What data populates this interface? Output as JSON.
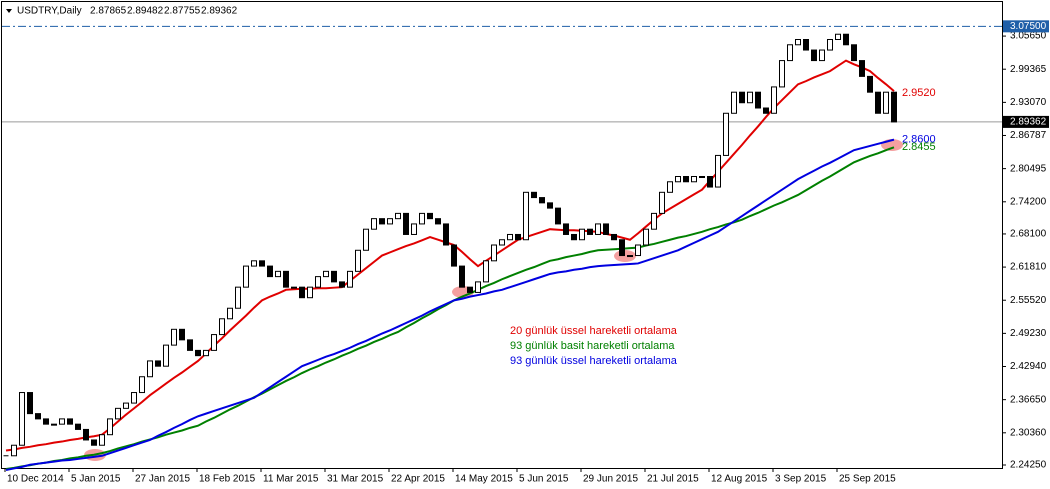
{
  "chart_data": {
    "type": "candlestick",
    "title": "USDTRY,Daily",
    "header_values": [
      2.87865,
      2.89482,
      2.87755,
      2.89362
    ],
    "categories": [
      "10 Dec 2014",
      null,
      null,
      null,
      null,
      null,
      null,
      null,
      "5 Jan 2015",
      null,
      null,
      null,
      null,
      null,
      null,
      null,
      "27 Jan 2015",
      null,
      null,
      null,
      null,
      null,
      null,
      null,
      "18 Feb 2015",
      null,
      null,
      null,
      null,
      null,
      null,
      null,
      "11 Mar 2015",
      null,
      null,
      null,
      null,
      null,
      null,
      null,
      "31 Mar 2015",
      null,
      null,
      null,
      null,
      null,
      null,
      null,
      "22 Apr 2015",
      null,
      null,
      null,
      null,
      null,
      null,
      null,
      "14 May 2015",
      null,
      null,
      null,
      null,
      null,
      null,
      null,
      "5 Jun 2015",
      null,
      null,
      null,
      null,
      null,
      null,
      null,
      "29 Jun 2015",
      null,
      null,
      null,
      null,
      null,
      null,
      null,
      "21 Jul 2015",
      null,
      null,
      null,
      null,
      null,
      null,
      null,
      "12 Aug 2015",
      null,
      null,
      null,
      null,
      null,
      null,
      null,
      "3 Sep 2015",
      null,
      null,
      null,
      null,
      null,
      null,
      null,
      "25 Sep 2015",
      null,
      null,
      null,
      null,
      null,
      null,
      null
    ],
    "values": [
      2.26,
      2.28,
      2.38,
      2.34,
      2.33,
      2.32,
      2.32,
      2.33,
      2.32,
      2.31,
      2.29,
      2.28,
      2.3,
      2.33,
      2.35,
      2.36,
      2.38,
      2.41,
      2.44,
      2.43,
      2.47,
      2.5,
      2.48,
      2.46,
      2.45,
      2.46,
      2.49,
      2.52,
      2.54,
      2.58,
      2.62,
      2.63,
      2.62,
      2.6,
      2.61,
      2.58,
      2.58,
      2.56,
      2.58,
      2.6,
      2.61,
      2.59,
      2.58,
      2.61,
      2.65,
      2.69,
      2.71,
      2.7,
      2.71,
      2.72,
      2.68,
      2.7,
      2.72,
      2.71,
      2.7,
      2.66,
      2.62,
      2.58,
      2.57,
      2.59,
      2.63,
      2.66,
      2.67,
      2.68,
      2.67,
      2.76,
      2.75,
      2.74,
      2.73,
      2.7,
      2.68,
      2.67,
      2.69,
      2.68,
      2.7,
      2.68,
      2.67,
      2.64,
      2.64,
      2.66,
      2.69,
      2.72,
      2.76,
      2.78,
      2.79,
      2.78,
      2.79,
      2.79,
      2.77,
      2.83,
      2.91,
      2.95,
      2.93,
      2.95,
      2.92,
      2.91,
      2.96,
      3.01,
      3.04,
      3.05,
      3.03,
      3.01,
      3.03,
      3.05,
      3.06,
      3.04,
      3.01,
      2.98,
      2.95,
      2.91,
      2.95,
      2.89362
    ],
    "up_color": "#ffffff",
    "down_color": "#000000",
    "series": [
      {
        "name": "20 günlük üssel hareketli ortalama",
        "color": "#e00000",
        "end_label": {
          "value": 2.952,
          "label": "2.9520"
        },
        "values": [
          2.27,
          2.272,
          2.275,
          2.277,
          2.28,
          2.282,
          2.285,
          2.287,
          2.29,
          2.292,
          2.295,
          2.297,
          2.3,
          2.312,
          2.325,
          2.338,
          2.35,
          2.362,
          2.375,
          2.386,
          2.397,
          2.408,
          2.418,
          2.429,
          2.44,
          2.454,
          2.469,
          2.483,
          2.498,
          2.512,
          2.526,
          2.541,
          2.555,
          2.562,
          2.568,
          2.575,
          2.576,
          2.577,
          2.577,
          2.578,
          2.578,
          2.579,
          2.58,
          2.592,
          2.604,
          2.616,
          2.628,
          2.64,
          2.646,
          2.652,
          2.658,
          2.663,
          2.669,
          2.675,
          2.67,
          2.665,
          2.66,
          2.647,
          2.633,
          2.62,
          2.63,
          2.64,
          2.65,
          2.66,
          2.67,
          2.675,
          2.68,
          2.685,
          2.69,
          2.689,
          2.688,
          2.688,
          2.687,
          2.686,
          2.685,
          2.681,
          2.678,
          2.674,
          2.67,
          2.682,
          2.695,
          2.708,
          2.72,
          2.729,
          2.738,
          2.747,
          2.756,
          2.765,
          2.782,
          2.799,
          2.816,
          2.833,
          2.85,
          2.868,
          2.885,
          2.903,
          2.92,
          2.935,
          2.95,
          2.965,
          2.971,
          2.978,
          2.984,
          2.99,
          3.0,
          3.01,
          3.003,
          2.997,
          2.99,
          2.977,
          2.965,
          2.952
        ]
      },
      {
        "name": "93 günlük basit hareketli ortalama",
        "color": "#008000",
        "end_label": {
          "value": 2.8455,
          "label": "2.8455"
        },
        "values": [
          2.235,
          2.237,
          2.24,
          2.242,
          2.245,
          2.247,
          2.25,
          2.252,
          2.255,
          2.257,
          2.26,
          2.262,
          2.265,
          2.269,
          2.274,
          2.278,
          2.282,
          2.287,
          2.291,
          2.295,
          2.3,
          2.304,
          2.308,
          2.313,
          2.317,
          2.325,
          2.332,
          2.34,
          2.348,
          2.355,
          2.363,
          2.371,
          2.378,
          2.386,
          2.394,
          2.402,
          2.409,
          2.417,
          2.424,
          2.43,
          2.437,
          2.443,
          2.45,
          2.456,
          2.463,
          2.469,
          2.476,
          2.482,
          2.489,
          2.495,
          2.504,
          2.512,
          2.521,
          2.529,
          2.538,
          2.546,
          2.555,
          2.562,
          2.568,
          2.575,
          2.582,
          2.588,
          2.595,
          2.601,
          2.607,
          2.613,
          2.618,
          2.624,
          2.63,
          2.633,
          2.637,
          2.64,
          2.643,
          2.647,
          2.65,
          2.651,
          2.652,
          2.653,
          2.654,
          2.655,
          2.659,
          2.662,
          2.666,
          2.67,
          2.674,
          2.677,
          2.681,
          2.685,
          2.69,
          2.694,
          2.699,
          2.703,
          2.708,
          2.715,
          2.721,
          2.728,
          2.735,
          2.741,
          2.748,
          2.755,
          2.764,
          2.773,
          2.782,
          2.79,
          2.799,
          2.808,
          2.817,
          2.823,
          2.829,
          2.834,
          2.84,
          2.8455
        ]
      },
      {
        "name": "93 günlük üssel hareketli ortalama",
        "color": "#0000e0",
        "end_label": {
          "value": 2.86,
          "label": "2.8600"
        },
        "values": [
          2.233,
          2.236,
          2.239,
          2.243,
          2.245,
          2.247,
          2.249,
          2.251,
          2.252,
          2.254,
          2.256,
          2.258,
          2.26,
          2.265,
          2.27,
          2.275,
          2.28,
          2.285,
          2.29,
          2.298,
          2.305,
          2.313,
          2.32,
          2.328,
          2.335,
          2.34,
          2.345,
          2.35,
          2.355,
          2.36,
          2.365,
          2.37,
          2.38,
          2.39,
          2.4,
          2.41,
          2.42,
          2.43,
          2.436,
          2.442,
          2.448,
          2.453,
          2.459,
          2.465,
          2.472,
          2.478,
          2.485,
          2.492,
          2.498,
          2.505,
          2.512,
          2.519,
          2.526,
          2.534,
          2.541,
          2.548,
          2.555,
          2.558,
          2.562,
          2.565,
          2.568,
          2.572,
          2.575,
          2.58,
          2.585,
          2.59,
          2.595,
          2.6,
          2.605,
          2.608,
          2.61,
          2.613,
          2.615,
          2.618,
          2.62,
          2.621,
          2.622,
          2.623,
          2.624,
          2.625,
          2.63,
          2.635,
          2.64,
          2.645,
          2.65,
          2.657,
          2.664,
          2.671,
          2.678,
          2.685,
          2.695,
          2.705,
          2.715,
          2.725,
          2.735,
          2.745,
          2.755,
          2.765,
          2.775,
          2.785,
          2.793,
          2.801,
          2.809,
          2.816,
          2.824,
          2.832,
          2.84,
          2.844,
          2.848,
          2.852,
          2.856,
          2.86
        ]
      }
    ],
    "ylim": [
      2.2368,
      3.1003
    ],
    "yticks": [
      {
        "value": 3.0565,
        "label": "3.05650"
      },
      2.99365,
      {
        "value": 2.9307,
        "label": "2.93070"
      },
      2.86787,
      2.80495,
      {
        "value": 2.742,
        "label": "2.74200"
      },
      {
        "value": 2.681,
        "label": "2.68100"
      },
      {
        "value": 2.6181,
        "label": "2.61810"
      },
      {
        "value": 2.5552,
        "label": "2.55520"
      },
      {
        "value": 2.4923,
        "label": "2.49230"
      },
      {
        "value": 2.4294,
        "label": "2.42940"
      },
      {
        "value": 2.3665,
        "label": "2.36650"
      },
      {
        "value": 2.3036,
        "label": "2.30360"
      },
      {
        "value": 2.2425,
        "label": "2.24250"
      }
    ],
    "level_line": {
      "value": 3.075,
      "label": "3.07500",
      "color": "#1f5fa8"
    },
    "price_line": {
      "value": 2.89362,
      "label": "2.89362",
      "color": "#9a9a9a"
    },
    "grid": false
  }
}
